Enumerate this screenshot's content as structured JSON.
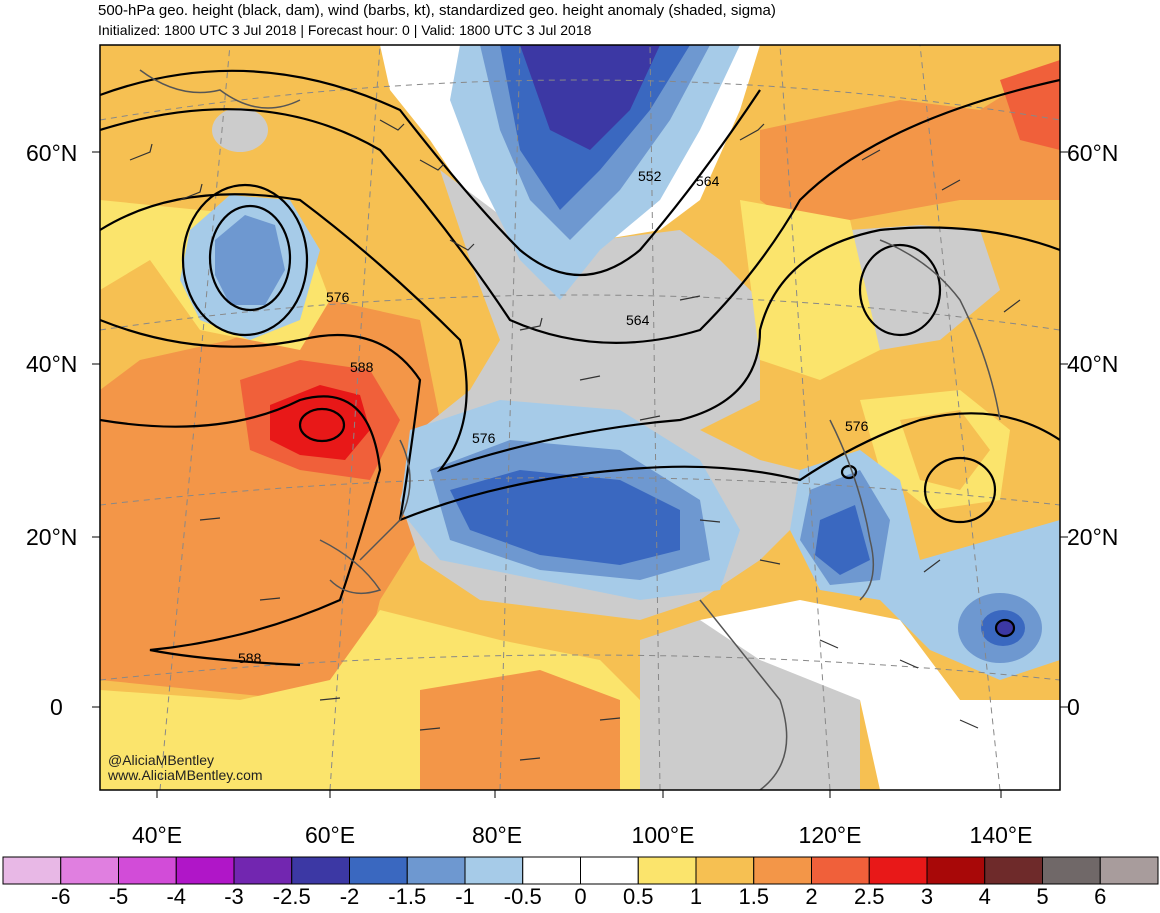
{
  "title": "500-hPa geo. height (black, dam), wind (barbs, kt), standardized geo. height anomaly (shaded, sigma)",
  "subtitle": "Initialized: 1800 UTC 3 Jul 2018 | Forecast hour: 0 | Valid: 1800 UTC 3 Jul 2018",
  "lat_labels": [
    "60°N",
    "40°N",
    "20°N",
    "0"
  ],
  "lon_labels": [
    "40°E",
    "60°E",
    "80°E",
    "100°E",
    "120°E",
    "140°E"
  ],
  "contour_labels": [
    "552",
    "564",
    "564",
    "576",
    "576",
    "576",
    "588",
    "588"
  ],
  "credit": [
    "@AliciaMBentley",
    "www.AliciaMBentley.com"
  ],
  "colorbar": {
    "labels": [
      "-6",
      "-5",
      "-4",
      "-3",
      "-2.5",
      "-2",
      "-1.5",
      "-1",
      "-0.5",
      "0",
      "0.5",
      "1",
      "1.5",
      "2",
      "2.5",
      "3",
      "4",
      "5",
      "6"
    ],
    "colors": [
      "#e8b8e6",
      "#e07fe0",
      "#d24cd8",
      "#b016c8",
      "#7226b0",
      "#3c38a4",
      "#3a68c0",
      "#6e98d0",
      "#a6cbe8",
      "#ffffff",
      "#ffffff",
      "#fbe46c",
      "#f6c052",
      "#f39648",
      "#f0603a",
      "#e81818",
      "#a80808",
      "#6e2a2a",
      "#706868",
      "#a89c9c"
    ]
  }
}
